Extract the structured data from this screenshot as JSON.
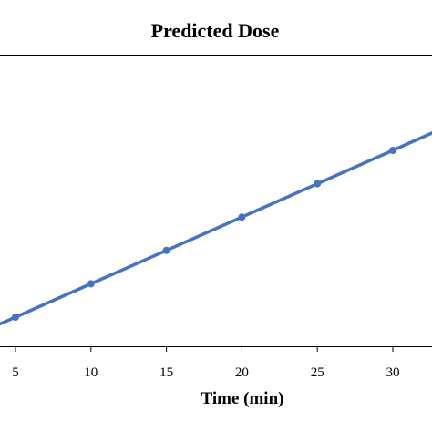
{
  "chart_data": {
    "type": "line",
    "title": "Predicted Dose",
    "xlabel": "Time (min)",
    "ylabel": "",
    "x_ticks": [
      5,
      10,
      15,
      20,
      25,
      30
    ],
    "xlim": [
      0,
      32.5
    ],
    "grid": false,
    "legend": "none",
    "series": [
      {
        "color": "#4472c4",
        "x": [
          5,
          10,
          15,
          20,
          25,
          30
        ],
        "y": [
          5,
          10,
          15,
          20,
          25,
          30
        ]
      }
    ]
  }
}
